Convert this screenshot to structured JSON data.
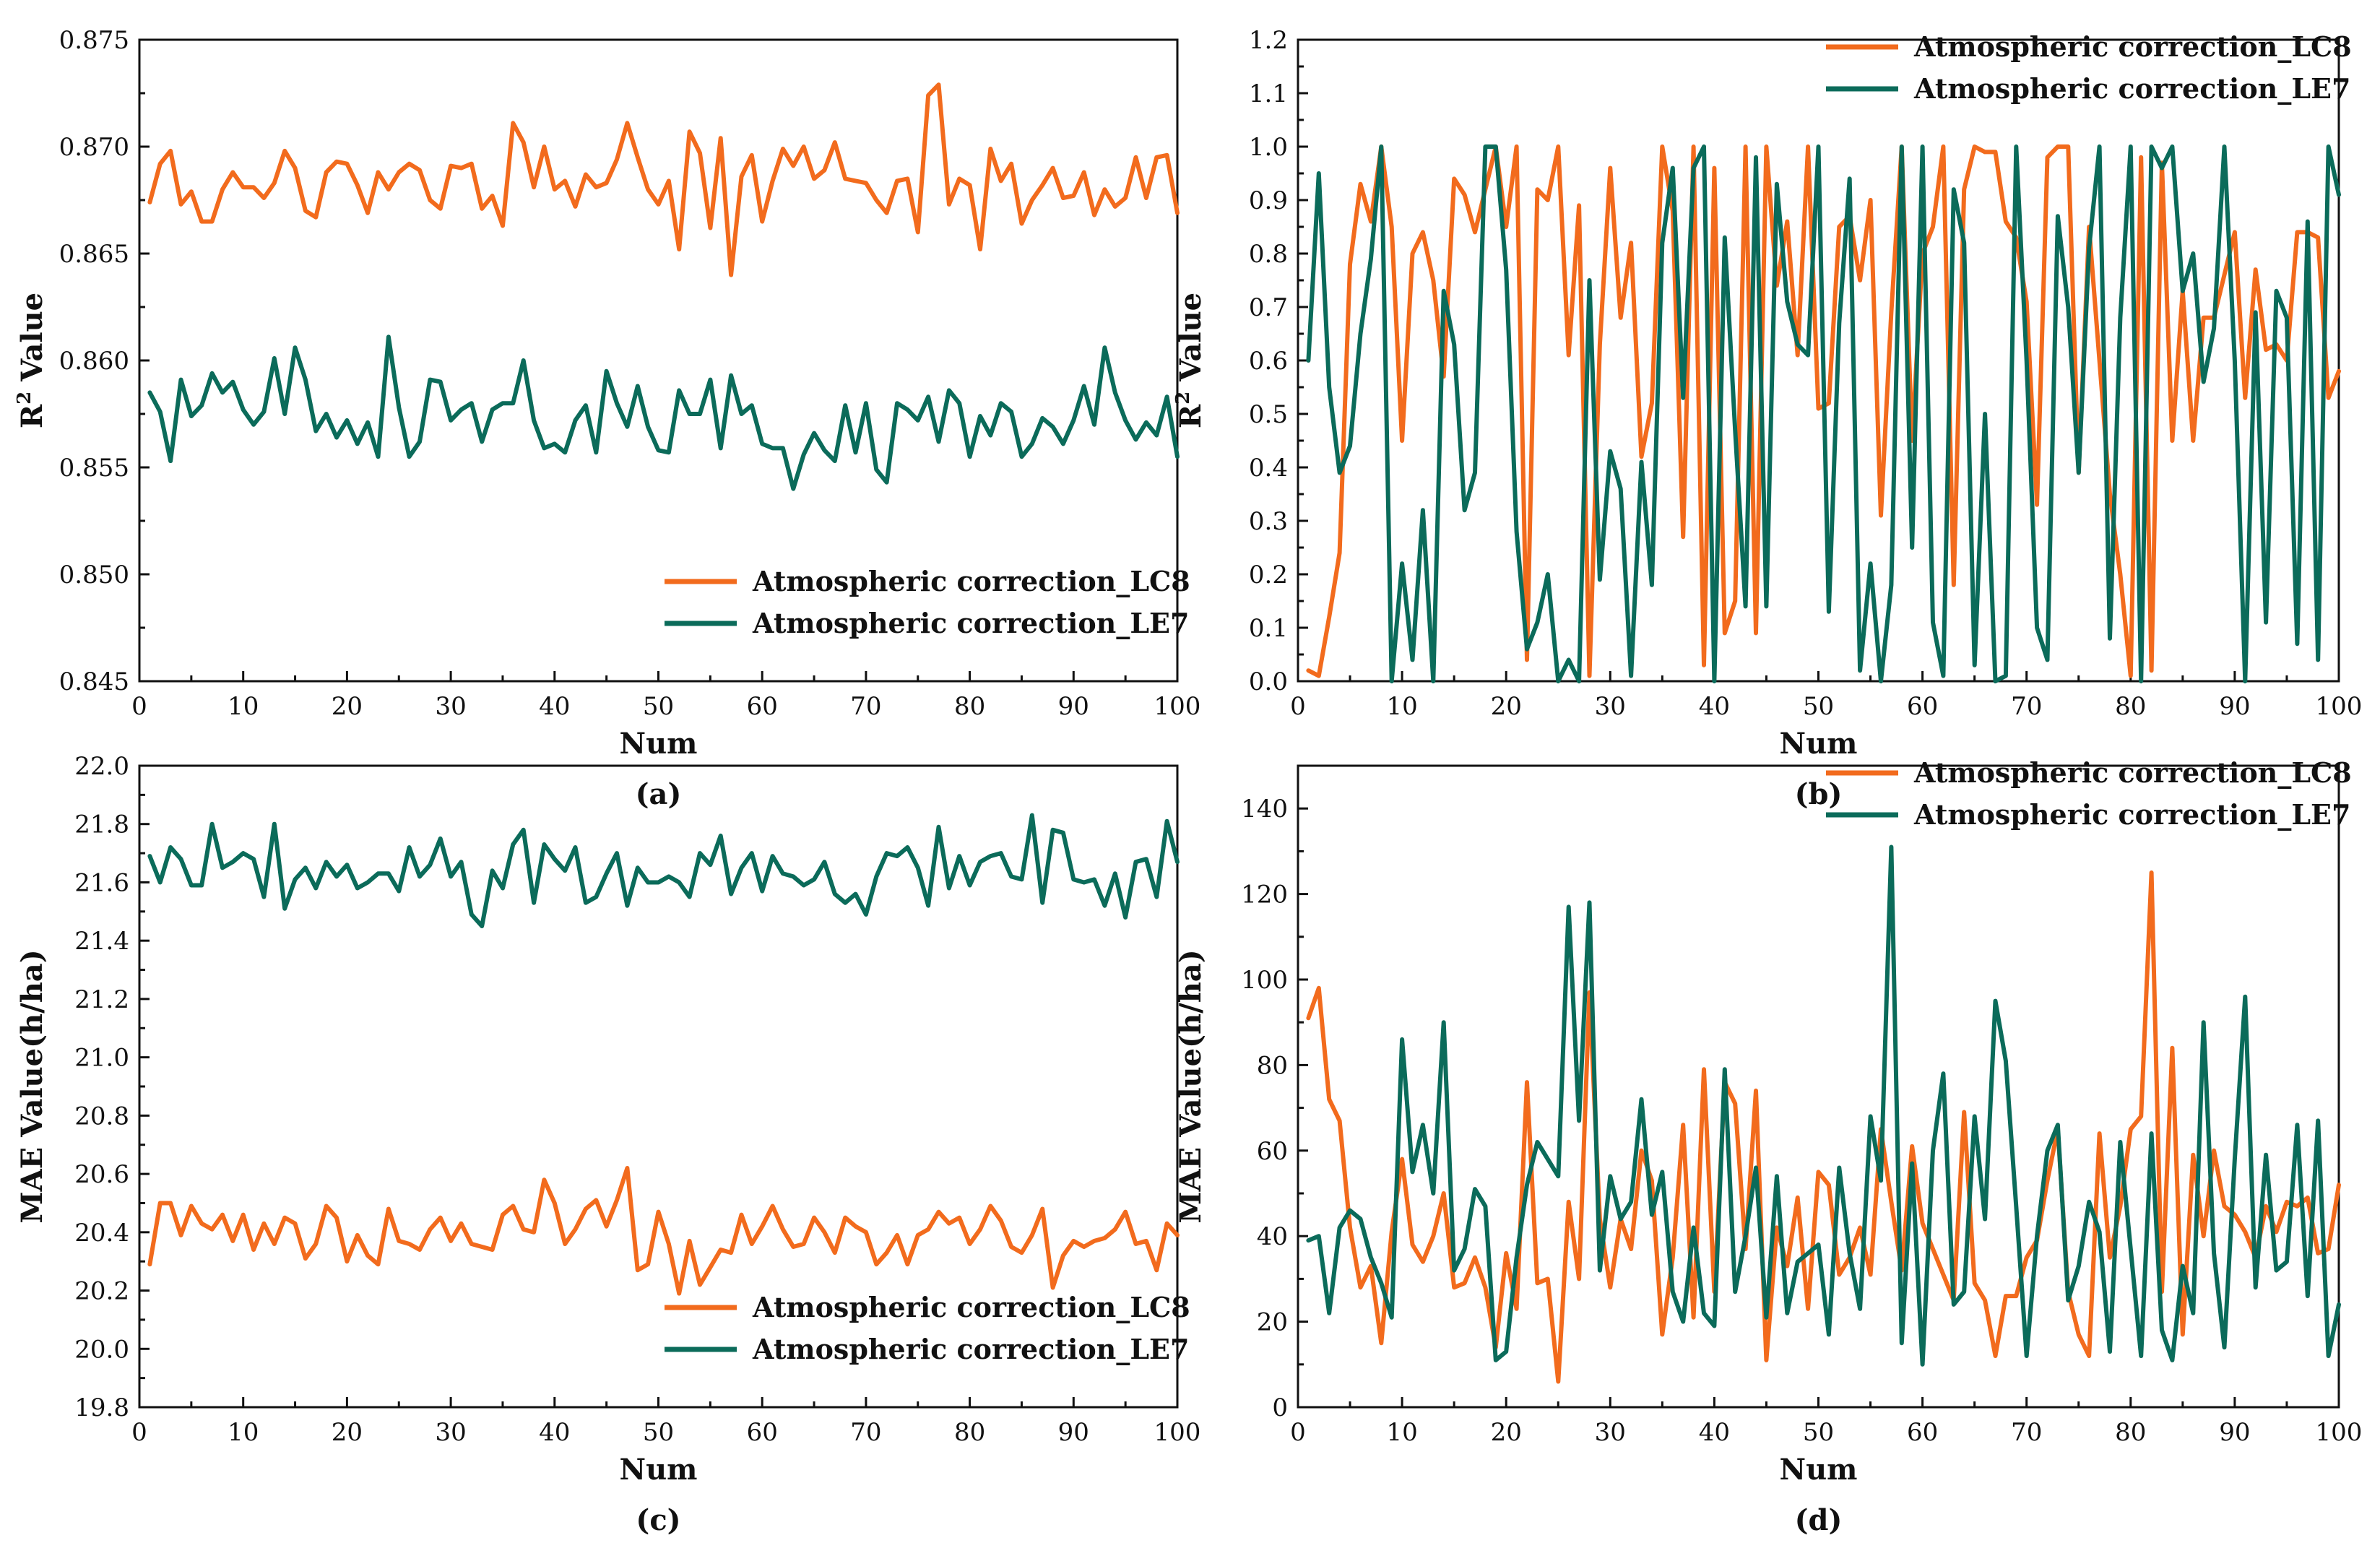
{
  "colors": {
    "lc8": "#f26b1d",
    "le7": "#0b6b5a"
  },
  "chart_data": [
    {
      "panel": "(a)",
      "type": "line",
      "xlabel": "Num",
      "ylabel_main": "R",
      "ylabel_sup": "2",
      "ylabel_rest": " Value",
      "xlim": [
        0,
        100
      ],
      "ylim": [
        0.845,
        0.875
      ],
      "xticks": [
        0,
        10,
        20,
        30,
        40,
        50,
        60,
        70,
        80,
        90,
        100
      ],
      "xtick_labels": [
        "0",
        "10",
        "20",
        "30",
        "40",
        "50",
        "60",
        "70",
        "80",
        "90",
        "100"
      ],
      "yticks": [
        0.845,
        0.85,
        0.855,
        0.86,
        0.865,
        0.87,
        0.875
      ],
      "ytick_labels": [
        "0.845",
        "0.850",
        "0.855",
        "0.860",
        "0.865",
        "0.870",
        "0.875"
      ],
      "legend_position": "bottom-right",
      "series": [
        {
          "name": "Atmospheric correction_LC8",
          "color_key": "lc8",
          "values": [
            0.8674,
            0.8692,
            0.8698,
            0.8673,
            0.8679,
            0.8665,
            0.8665,
            0.868,
            0.8688,
            0.8681,
            0.8681,
            0.8676,
            0.8683,
            0.8698,
            0.869,
            0.867,
            0.8667,
            0.8688,
            0.8693,
            0.8692,
            0.8682,
            0.8669,
            0.8688,
            0.868,
            0.8688,
            0.8692,
            0.8689,
            0.8675,
            0.8671,
            0.8691,
            0.869,
            0.8692,
            0.8671,
            0.8677,
            0.8663,
            0.8711,
            0.8702,
            0.8681,
            0.87,
            0.868,
            0.8684,
            0.8672,
            0.8687,
            0.8681,
            0.8683,
            0.8694,
            0.8711,
            0.8695,
            0.868,
            0.8673,
            0.8684,
            0.8652,
            0.8707,
            0.8697,
            0.8662,
            0.8704,
            0.864,
            0.8686,
            0.8696,
            0.8665,
            0.8684,
            0.8699,
            0.8691,
            0.87,
            0.8685,
            0.8689,
            0.8702,
            0.8685,
            0.8684,
            0.8683,
            0.8675,
            0.8669,
            0.8684,
            0.8685,
            0.866,
            0.8724,
            0.8729,
            0.8673,
            0.8685,
            0.8682,
            0.8652,
            0.8699,
            0.8684,
            0.8692,
            0.8664,
            0.8675,
            0.8682,
            0.869,
            0.8676,
            0.8677,
            0.8688,
            0.8668,
            0.868,
            0.8672,
            0.8676,
            0.8695,
            0.8676,
            0.8695,
            0.8696,
            0.8669
          ]
        },
        {
          "name": "Atmospheric correction_LE7",
          "color_key": "le7",
          "values": [
            0.8585,
            0.8576,
            0.8553,
            0.8591,
            0.8574,
            0.8579,
            0.8594,
            0.8585,
            0.859,
            0.8577,
            0.857,
            0.8576,
            0.8601,
            0.8575,
            0.8606,
            0.8591,
            0.8567,
            0.8575,
            0.8564,
            0.8572,
            0.8561,
            0.8571,
            0.8555,
            0.8611,
            0.8578,
            0.8555,
            0.8562,
            0.8591,
            0.859,
            0.8572,
            0.8577,
            0.858,
            0.8562,
            0.8577,
            0.858,
            0.858,
            0.86,
            0.8572,
            0.8559,
            0.8561,
            0.8557,
            0.8572,
            0.8579,
            0.8557,
            0.8595,
            0.858,
            0.8569,
            0.8588,
            0.8569,
            0.8558,
            0.8557,
            0.8586,
            0.8575,
            0.8575,
            0.8591,
            0.8559,
            0.8593,
            0.8575,
            0.8579,
            0.8561,
            0.8559,
            0.8559,
            0.854,
            0.8556,
            0.8566,
            0.8558,
            0.8553,
            0.8579,
            0.8557,
            0.858,
            0.8549,
            0.8543,
            0.858,
            0.8577,
            0.8572,
            0.8583,
            0.8562,
            0.8586,
            0.858,
            0.8555,
            0.8574,
            0.8565,
            0.858,
            0.8576,
            0.8555,
            0.8561,
            0.8573,
            0.8569,
            0.8561,
            0.8572,
            0.8588,
            0.857,
            0.8606,
            0.8585,
            0.8572,
            0.8563,
            0.8571,
            0.8565,
            0.8583,
            0.8555
          ]
        }
      ]
    },
    {
      "panel": "(b)",
      "type": "line",
      "xlabel": "Num",
      "ylabel_main": "R",
      "ylabel_sup": "2",
      "ylabel_rest": " Value",
      "xlim": [
        0,
        100
      ],
      "ylim": [
        0.0,
        1.2
      ],
      "xticks": [
        0,
        10,
        20,
        30,
        40,
        50,
        60,
        70,
        80,
        90,
        100
      ],
      "xtick_labels": [
        "0",
        "10",
        "20",
        "30",
        "40",
        "50",
        "60",
        "70",
        "80",
        "90",
        "100"
      ],
      "yticks": [
        0.0,
        0.1,
        0.2,
        0.3,
        0.4,
        0.5,
        0.6,
        0.7,
        0.8,
        0.9,
        1.0,
        1.1,
        1.2
      ],
      "ytick_labels": [
        "0.0",
        "0.1",
        "0.2",
        "0.3",
        "0.4",
        "0.5",
        "0.6",
        "0.7",
        "0.8",
        "0.9",
        "1.0",
        "1.1",
        "1.2"
      ],
      "legend_position": "top-right",
      "series": [
        {
          "name": "Atmospheric correction_LC8",
          "color_key": "lc8",
          "values": [
            0.02,
            0.01,
            0.12,
            0.24,
            0.78,
            0.93,
            0.86,
            1.0,
            0.85,
            0.45,
            0.8,
            0.84,
            0.75,
            0.57,
            0.94,
            0.91,
            0.84,
            0.92,
            1.0,
            0.85,
            1.0,
            0.04,
            0.92,
            0.9,
            1.0,
            0.61,
            0.89,
            0.01,
            0.63,
            0.96,
            0.68,
            0.82,
            0.42,
            0.52,
            1.0,
            0.88,
            0.27,
            1.0,
            0.03,
            0.96,
            0.09,
            0.15,
            1.0,
            0.09,
            1.0,
            0.74,
            0.86,
            0.61,
            1.0,
            0.51,
            0.52,
            0.85,
            0.87,
            0.75,
            0.9,
            0.31,
            0.69,
            1.0,
            0.45,
            0.8,
            0.85,
            1.0,
            0.18,
            0.92,
            1.0,
            0.99,
            0.99,
            0.86,
            0.83,
            0.71,
            0.33,
            0.98,
            1.0,
            1.0,
            0.39,
            0.85,
            0.6,
            0.35,
            0.2,
            0.01,
            0.98,
            0.02,
            0.97,
            0.45,
            0.73,
            0.45,
            0.68,
            0.68,
            0.76,
            0.84,
            0.53,
            0.77,
            0.62,
            0.63,
            0.6,
            0.84,
            0.84,
            0.83,
            0.53,
            0.58
          ]
        },
        {
          "name": "Atmospheric correction_LE7",
          "color_key": "le7",
          "values": [
            0.6,
            0.95,
            0.55,
            0.39,
            0.44,
            0.65,
            0.79,
            1.0,
            0.0,
            0.22,
            0.04,
            0.32,
            0.0,
            0.73,
            0.63,
            0.32,
            0.39,
            1.0,
            1.0,
            0.77,
            0.28,
            0.06,
            0.11,
            0.2,
            0.0,
            0.04,
            0.0,
            0.75,
            0.19,
            0.43,
            0.36,
            0.01,
            0.41,
            0.18,
            0.82,
            0.96,
            0.53,
            0.96,
            1.0,
            0.0,
            0.83,
            0.47,
            0.14,
            0.98,
            0.14,
            0.93,
            0.71,
            0.63,
            0.61,
            1.0,
            0.13,
            0.67,
            0.94,
            0.02,
            0.22,
            0.0,
            0.18,
            1.0,
            0.25,
            1.0,
            0.11,
            0.01,
            0.92,
            0.82,
            0.03,
            0.5,
            0.0,
            0.01,
            1.0,
            0.6,
            0.1,
            0.04,
            0.87,
            0.7,
            0.39,
            0.81,
            1.0,
            0.08,
            0.68,
            1.0,
            0.0,
            1.0,
            0.96,
            1.0,
            0.73,
            0.8,
            0.56,
            0.66,
            1.0,
            0.6,
            0.0,
            0.69,
            0.11,
            0.73,
            0.68,
            0.07,
            0.86,
            0.04,
            1.0,
            0.91
          ]
        }
      ]
    },
    {
      "panel": "(c)",
      "type": "line",
      "xlabel": "Num",
      "ylabel_main": "MAE Value(h/ha)",
      "ylabel_sup": "",
      "ylabel_rest": "",
      "xlim": [
        0,
        100
      ],
      "ylim": [
        19.8,
        22.0
      ],
      "xticks": [
        0,
        10,
        20,
        30,
        40,
        50,
        60,
        70,
        80,
        90,
        100
      ],
      "xtick_labels": [
        "0",
        "10",
        "20",
        "30",
        "40",
        "50",
        "60",
        "70",
        "80",
        "90",
        "100"
      ],
      "yticks": [
        19.8,
        20.0,
        20.2,
        20.4,
        20.6,
        20.8,
        21.0,
        21.2,
        21.4,
        21.6,
        21.8,
        22.0
      ],
      "ytick_labels": [
        "19.8",
        "20.0",
        "20.2",
        "20.4",
        "20.6",
        "20.8",
        "21.0",
        "21.2",
        "21.4",
        "21.6",
        "21.8",
        "22.0"
      ],
      "legend_position": "bottom-right",
      "series": [
        {
          "name": "Atmospheric correction_LC8",
          "color_key": "lc8",
          "values": [
            20.29,
            20.5,
            20.5,
            20.39,
            20.49,
            20.43,
            20.41,
            20.46,
            20.37,
            20.46,
            20.34,
            20.43,
            20.36,
            20.45,
            20.43,
            20.31,
            20.36,
            20.49,
            20.45,
            20.3,
            20.39,
            20.32,
            20.29,
            20.48,
            20.37,
            20.36,
            20.34,
            20.41,
            20.45,
            20.37,
            20.43,
            20.36,
            20.35,
            20.34,
            20.46,
            20.49,
            20.41,
            20.4,
            20.58,
            20.5,
            20.36,
            20.41,
            20.48,
            20.51,
            20.42,
            20.51,
            20.62,
            20.27,
            20.29,
            20.47,
            20.36,
            20.19,
            20.37,
            20.22,
            20.28,
            20.34,
            20.33,
            20.46,
            20.36,
            20.42,
            20.49,
            20.41,
            20.35,
            20.36,
            20.45,
            20.4,
            20.33,
            20.45,
            20.42,
            20.4,
            20.29,
            20.33,
            20.39,
            20.29,
            20.39,
            20.41,
            20.47,
            20.43,
            20.45,
            20.36,
            20.41,
            20.49,
            20.44,
            20.35,
            20.33,
            20.39,
            20.48,
            20.21,
            20.32,
            20.37,
            20.35,
            20.37,
            20.38,
            20.41,
            20.47,
            20.36,
            20.37,
            20.27,
            20.43,
            20.39
          ]
        },
        {
          "name": "Atmospheric correction_LE7",
          "color_key": "le7",
          "values": [
            21.69,
            21.6,
            21.72,
            21.68,
            21.59,
            21.59,
            21.8,
            21.65,
            21.67,
            21.7,
            21.68,
            21.55,
            21.8,
            21.51,
            21.61,
            21.65,
            21.58,
            21.67,
            21.62,
            21.66,
            21.58,
            21.6,
            21.63,
            21.63,
            21.57,
            21.72,
            21.62,
            21.66,
            21.75,
            21.62,
            21.67,
            21.49,
            21.45,
            21.64,
            21.58,
            21.73,
            21.78,
            21.53,
            21.73,
            21.68,
            21.64,
            21.72,
            21.53,
            21.55,
            21.63,
            21.7,
            21.52,
            21.65,
            21.6,
            21.6,
            21.62,
            21.6,
            21.55,
            21.7,
            21.66,
            21.76,
            21.56,
            21.65,
            21.7,
            21.57,
            21.69,
            21.63,
            21.62,
            21.59,
            21.61,
            21.67,
            21.56,
            21.53,
            21.56,
            21.49,
            21.62,
            21.7,
            21.69,
            21.72,
            21.65,
            21.52,
            21.79,
            21.58,
            21.69,
            21.59,
            21.67,
            21.69,
            21.7,
            21.62,
            21.61,
            21.83,
            21.53,
            21.78,
            21.77,
            21.61,
            21.6,
            21.61,
            21.52,
            21.63,
            21.48,
            21.67,
            21.68,
            21.55,
            21.81,
            21.67
          ]
        }
      ]
    },
    {
      "panel": "(d)",
      "type": "line",
      "xlabel": "Num",
      "ylabel_main": "MAE Value(h/ha)",
      "ylabel_sup": "",
      "ylabel_rest": "",
      "xlim": [
        0,
        100
      ],
      "ylim": [
        0,
        150
      ],
      "xticks": [
        0,
        10,
        20,
        30,
        40,
        50,
        60,
        70,
        80,
        90,
        100
      ],
      "xtick_labels": [
        "0",
        "10",
        "20",
        "30",
        "40",
        "50",
        "60",
        "70",
        "80",
        "90",
        "100"
      ],
      "yticks": [
        0,
        20,
        40,
        60,
        80,
        100,
        120,
        140
      ],
      "ytick_labels": [
        "0",
        "20",
        "40",
        "60",
        "80",
        "100",
        "120",
        "140"
      ],
      "legend_position": "top-right",
      "series": [
        {
          "name": "Atmospheric correction_LC8",
          "color_key": "lc8",
          "values": [
            91,
            98,
            72,
            67,
            42,
            28,
            33,
            15,
            41,
            58,
            38,
            34,
            40,
            50,
            28,
            29,
            35,
            28,
            14,
            36,
            23,
            76,
            29,
            30,
            6,
            48,
            30,
            97,
            44,
            28,
            44,
            37,
            60,
            53,
            17,
            35,
            66,
            21,
            79,
            27,
            76,
            71,
            37,
            74,
            11,
            42,
            33,
            49,
            23,
            55,
            52,
            31,
            35,
            42,
            31,
            65,
            48,
            32,
            61,
            43,
            37,
            31,
            25,
            69,
            29,
            25,
            12,
            26,
            26,
            35,
            39,
            53,
            65,
            27,
            17,
            12,
            64,
            35,
            47,
            65,
            68,
            125,
            27,
            84,
            17,
            59,
            40,
            60,
            47,
            45,
            41,
            35,
            47,
            41,
            48,
            47,
            49,
            36,
            37,
            52
          ]
        },
        {
          "name": "Atmospheric correction_LE7",
          "color_key": "le7",
          "values": [
            39,
            40,
            22,
            42,
            46,
            44,
            35,
            29,
            21,
            86,
            55,
            66,
            50,
            90,
            32,
            37,
            51,
            47,
            11,
            13,
            35,
            52,
            62,
            58,
            54,
            117,
            67,
            118,
            32,
            54,
            44,
            48,
            72,
            45,
            55,
            27,
            20,
            42,
            22,
            19,
            79,
            27,
            40,
            56,
            21,
            54,
            22,
            34,
            36,
            38,
            17,
            56,
            36,
            23,
            68,
            53,
            131,
            15,
            57,
            10,
            60,
            78,
            24,
            27,
            68,
            44,
            95,
            81,
            47,
            12,
            40,
            60,
            66,
            25,
            33,
            48,
            41,
            13,
            62,
            37,
            12,
            64,
            18,
            11,
            33,
            22,
            90,
            36,
            14,
            58,
            96,
            28,
            59,
            32,
            34,
            66,
            26,
            67,
            12,
            24
          ]
        }
      ]
    }
  ]
}
